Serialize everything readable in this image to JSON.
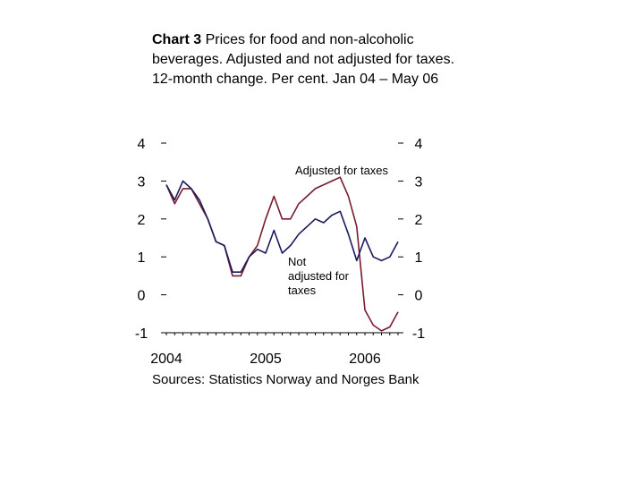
{
  "title": {
    "label": "Chart 3",
    "text": " Prices for food and non-alcoholic beverages. Adjusted and not adjusted for taxes.",
    "subtitle": "12-month change. Per cent. Jan 04 – May 06"
  },
  "source": "Sources: Statistics Norway and Norges Bank",
  "colors": {
    "adjusted": "#7a1a2e",
    "not_adjusted": "#1a1a5e",
    "axis": "#000000"
  },
  "chart_data": {
    "type": "line",
    "x": [
      "Jan 04",
      "Feb 04",
      "Mar 04",
      "Apr 04",
      "May 04",
      "Jun 04",
      "Jul 04",
      "Aug 04",
      "Sep 04",
      "Oct 04",
      "Nov 04",
      "Dec 04",
      "Jan 05",
      "Feb 05",
      "Mar 05",
      "Apr 05",
      "May 05",
      "Jun 05",
      "Jul 05",
      "Aug 05",
      "Sep 05",
      "Oct 05",
      "Nov 05",
      "Dec 05",
      "Jan 06",
      "Feb 06",
      "Mar 06",
      "Apr 06",
      "May 06"
    ],
    "x_ticks": [
      "2004",
      "2005",
      "2006"
    ],
    "ylim": [
      -1,
      4
    ],
    "y_ticks": [
      -1,
      0,
      1,
      2,
      3,
      4
    ],
    "grid": false,
    "series": [
      {
        "name": "Adjusted for taxes",
        "color_key": "adjusted",
        "values": [
          2.9,
          2.4,
          2.8,
          2.8,
          2.4,
          2.0,
          1.4,
          1.3,
          0.5,
          0.5,
          1.0,
          1.3,
          2.0,
          2.6,
          2.0,
          2.0,
          2.4,
          2.6,
          2.8,
          2.9,
          3.0,
          3.1,
          2.6,
          1.8,
          -0.4,
          -0.8,
          -0.95,
          -0.85,
          -0.45
        ]
      },
      {
        "name": "Not adjusted for taxes",
        "color_key": "not_adjusted",
        "values": [
          2.9,
          2.5,
          3.0,
          2.8,
          2.5,
          2.0,
          1.4,
          1.3,
          0.6,
          0.6,
          1.0,
          1.2,
          1.1,
          1.7,
          1.1,
          1.3,
          1.6,
          1.8,
          2.0,
          1.9,
          2.1,
          2.2,
          1.6,
          0.9,
          1.5,
          1.0,
          0.9,
          1.0,
          1.4
        ]
      }
    ],
    "annotations": [
      {
        "text": "Adjusted for taxes",
        "series": 0
      },
      {
        "lines": [
          "Not",
          "adjusted for",
          "taxes"
        ],
        "series": 1
      }
    ]
  }
}
